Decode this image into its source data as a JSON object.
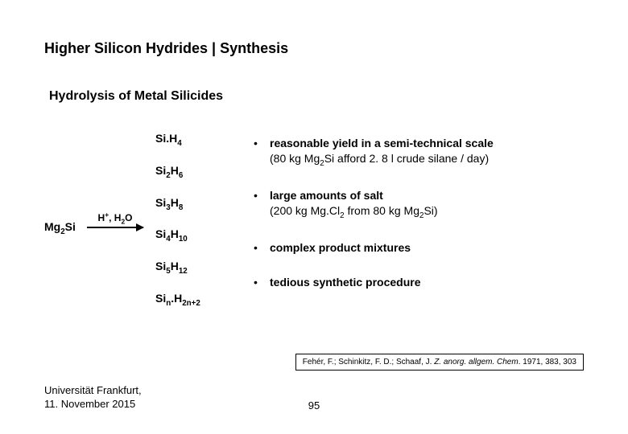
{
  "title": "Higher Silicon Hydrides | Synthesis",
  "subtitle": "Hydrolysis of Metal Silicides",
  "reaction": {
    "reactant_html": "Mg<sub>2</sub>Si",
    "arrow_label_html": "H<sup>+</sup>, H<sub>2</sub>O",
    "products_html": [
      "Si.H<sub>4</sub>",
      "Si<sub>2</sub>H<sub>6</sub>",
      "Si<sub>3</sub>H<sub>8</sub>",
      "Si<sub>4</sub>H<sub>10</sub>",
      "Si<sub>5</sub>H<sub>12</sub>",
      "Si<sub>n</sub>.H<sub>2n+2</sub>"
    ]
  },
  "bullets": [
    {
      "bold": "reasonable yield in a semi-technical scale",
      "rest_html": "(80 kg Mg<sub>2</sub>Si afford 2. 8 l crude silane / day)"
    },
    {
      "bold": "large amounts of salt",
      "rest_html": "(200 kg Mg.Cl<sub>2</sub> from 80 kg Mg<sub>2</sub>Si)"
    },
    {
      "bold": "complex product mixtures",
      "rest_html": ""
    },
    {
      "bold": "tedious synthetic procedure",
      "rest_html": ""
    }
  ],
  "citation": {
    "authors": "Fehér, F.; Schinkitz, F. D.; Schaaf, J. ",
    "journal": "Z. anorg. allgem. Chem",
    "rest": ". 1971, 383, 303"
  },
  "footer": {
    "affiliation_line1": "Universität Frankfurt,",
    "affiliation_line2": "11. November 2015",
    "page": "95"
  },
  "style": {
    "bg": "#ffffff",
    "text_color": "#000000",
    "title_fontsize": 18,
    "subtitle_fontsize": 16,
    "body_fontsize": 14,
    "citation_fontsize": 10
  }
}
